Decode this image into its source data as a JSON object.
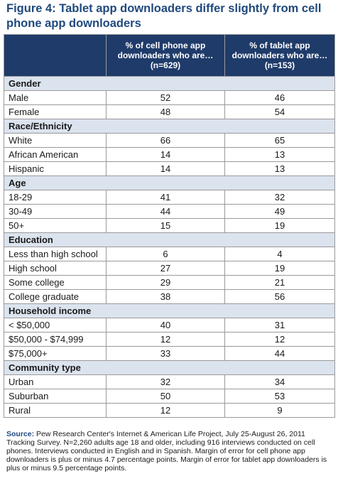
{
  "title": "Figure 4: Tablet app downloaders differ slightly from cell phone app downloaders",
  "columns": [
    "",
    "% of cell phone app downloaders who are… (n=629)",
    "% of tablet app downloaders who are… (n=153)"
  ],
  "sections": [
    {
      "name": "Gender",
      "rows": [
        {
          "label": "Male",
          "cell": "52",
          "tablet": "46"
        },
        {
          "label": "Female",
          "cell": "48",
          "tablet": "54"
        }
      ]
    },
    {
      "name": "Race/Ethnicity",
      "rows": [
        {
          "label": "White",
          "cell": "66",
          "tablet": "65"
        },
        {
          "label": "African American",
          "cell": "14",
          "tablet": "13"
        },
        {
          "label": "Hispanic",
          "cell": "14",
          "tablet": "13"
        }
      ]
    },
    {
      "name": "Age",
      "rows": [
        {
          "label": "18-29",
          "cell": "41",
          "tablet": "32"
        },
        {
          "label": "30-49",
          "cell": "44",
          "tablet": "49"
        },
        {
          "label": "50+",
          "cell": "15",
          "tablet": "19"
        }
      ]
    },
    {
      "name": "Education",
      "rows": [
        {
          "label": "Less than high school",
          "cell": "6",
          "tablet": "4"
        },
        {
          "label": "High school",
          "cell": "27",
          "tablet": "19"
        },
        {
          "label": "Some college",
          "cell": "29",
          "tablet": "21"
        },
        {
          "label": "College graduate",
          "cell": "38",
          "tablet": "56"
        }
      ]
    },
    {
      "name": "Household income",
      "rows": [
        {
          "label": "< $50,000",
          "cell": "40",
          "tablet": "31"
        },
        {
          "label": "$50,000 - $74,999",
          "cell": "12",
          "tablet": "12"
        },
        {
          "label": "$75,000+",
          "cell": "33",
          "tablet": "44"
        }
      ]
    },
    {
      "name": "Community type",
      "rows": [
        {
          "label": "Urban",
          "cell": "32",
          "tablet": "34"
        },
        {
          "label": "Suburban",
          "cell": "50",
          "tablet": "53"
        },
        {
          "label": "Rural",
          "cell": "12",
          "tablet": "9"
        }
      ]
    }
  ],
  "source": {
    "label": "Source:",
    "text": "Pew Research Center's Internet & American Life Project, July 25-August 26, 2011 Tracking Survey.  N=2,260 adults age 18 and older, including 916 interviews conducted on cell phones.  Interviews conducted in English and in Spanish.  Margin of error for cell phone app downloaders is plus or minus 4.7 percentage points.  Margin of error for tablet app downloaders is plus or minus 9.5 percentage points."
  },
  "colors": {
    "title": "#1f497d",
    "header_bg": "#1f3b6a",
    "section_bg": "#dbe3ee",
    "border": "#9a9a9a"
  }
}
